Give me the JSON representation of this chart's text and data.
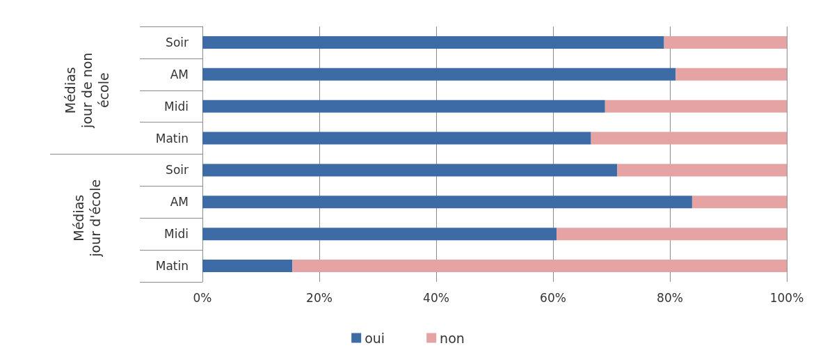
{
  "chart_data": {
    "type": "bar",
    "orientation": "horizontal",
    "stacked": true,
    "categories": [
      "Soir",
      "AM",
      "Midi",
      "Matin",
      "Soir",
      "AM",
      "Midi",
      "Matin"
    ],
    "series": [
      {
        "name": "oui",
        "color": "#3d6ba6",
        "values": [
          79,
          81,
          68.9,
          66.5,
          71,
          83.8,
          60.6,
          15.4
        ]
      },
      {
        "name": "non",
        "color": "#e6a3a3",
        "values": [
          21,
          19,
          31.1,
          33.5,
          29,
          16.2,
          39.4,
          84.6
        ]
      }
    ],
    "xlim": [
      0,
      100
    ],
    "xticks": [
      {
        "value": 0,
        "label": "0%"
      },
      {
        "value": 20,
        "label": "20%"
      },
      {
        "value": 40,
        "label": "40%"
      },
      {
        "value": 60,
        "label": "60%"
      },
      {
        "value": 80,
        "label": "80%"
      },
      {
        "value": 100,
        "label": "100%"
      }
    ],
    "annotations": [
      "Médias\njour de non\nécole",
      "Médias\njour d'école"
    ],
    "grid": "x",
    "legend": "bottom"
  }
}
